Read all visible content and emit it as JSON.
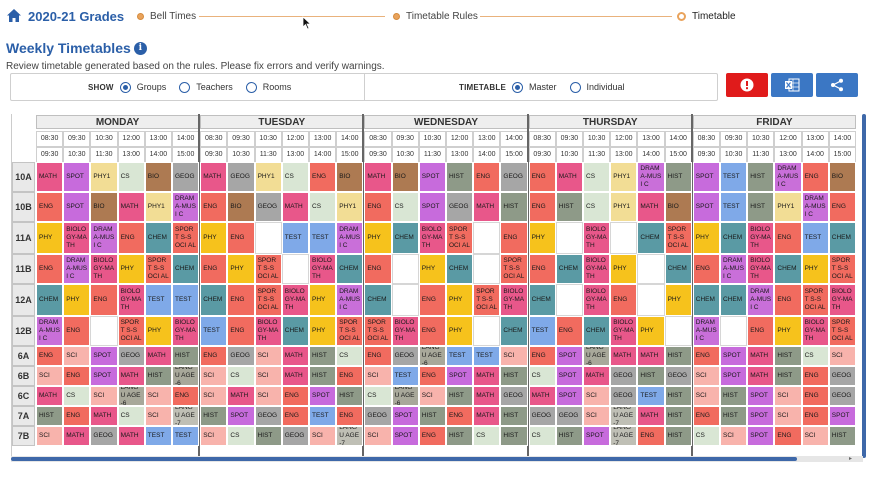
{
  "nav": {
    "title": "2020-21 Grades",
    "steps": [
      {
        "label": "Bell Times",
        "active": false
      },
      {
        "label": "Timetable Rules",
        "active": false
      },
      {
        "label": "Timetable",
        "active": true
      }
    ]
  },
  "header": {
    "title": "Weekly Timetables",
    "info_icon": "i",
    "subtitle": "Review timetable generated based on the rules. Please fix errors and verify warnings."
  },
  "filters": {
    "show_label": "SHOW",
    "show_options": [
      {
        "label": "Groups",
        "selected": true
      },
      {
        "label": "Teachers",
        "selected": false
      },
      {
        "label": "Rooms",
        "selected": false
      }
    ],
    "timetable_label": "TIMETABLE",
    "timetable_options": [
      {
        "label": "Master",
        "selected": true
      },
      {
        "label": "Individual",
        "selected": false
      }
    ]
  },
  "toolbar": {
    "error_icon": "alert-circle-icon",
    "excel_icon": "excel-icon",
    "share_icon": "share-icon",
    "error_color": "#e01b1b",
    "accent_color": "#3b77c4"
  },
  "timetable": {
    "days": [
      "MONDAY",
      "TUESDAY",
      "WEDNESDAY",
      "THURSDAY",
      "FRIDAY"
    ],
    "periods": [
      {
        "start": "08:30",
        "end": "09:30"
      },
      {
        "start": "09:30",
        "end": "10:30"
      },
      {
        "start": "10:30",
        "end": "11:30"
      },
      {
        "start": "12:00",
        "end": "13:00"
      },
      {
        "start": "13:00",
        "end": "14:00"
      },
      {
        "start": "14:00",
        "end": "15:00"
      }
    ],
    "subject_colors": {
      "MATH": "#e8578a",
      "SPOT": "#c76bdc",
      "PHY1": "#f2dd95",
      "CS": "#d9e6d4",
      "BIO": "#ad7a52",
      "GEOG": "#a6a6a6",
      "ENG": "#f16b5f",
      "DRAMA-MUSIC": "#c96fd9",
      "HIST": "#8e9a88",
      "TEST": "#7fa9e8",
      "SPORTS-SOCIAL": "#f16b5f",
      "PHY": "#f6c21c",
      "BIOLOGY-MATH": "#e8578a",
      "CHEM": "#5a9aa4",
      "SCI": "#f8b3ac",
      "LANGUAGE-6": "#a8a89a",
      "LANGUAGE-7": "#bfbfb5",
      "FREE": "#ffffff"
    },
    "rows": [
      {
        "label": "10A",
        "cells": [
          "MATH",
          "SPOT",
          "PHY1",
          "CS",
          "BIO",
          "GEOG",
          "MATH",
          "GEOG",
          "PHY1",
          "CS",
          "ENG",
          "BIO",
          "MATH",
          "BIO",
          "SPOT",
          "HIST",
          "ENG",
          "GEOG",
          "ENG",
          "MATH",
          "CS",
          "PHY1",
          "DRAM A-MUSI C",
          "HIST",
          "SPOT",
          "TEST",
          "HIST",
          "DRAM A-MUSI C",
          "ENG",
          "BIO"
        ]
      },
      {
        "label": "10B",
        "cells": [
          "ENG",
          "SPOT",
          "BIO",
          "MATH",
          "PHY1",
          "DRAM A-MUSI C",
          "ENG",
          "BIO",
          "GEOG",
          "MATH",
          "CS",
          "PHY1",
          "ENG",
          "CS",
          "SPOT",
          "GEOG",
          "MATH",
          "HIST",
          "ENG",
          "HIST",
          "CS",
          "PHY1",
          "MATH",
          "BIO",
          "SPOT",
          "TEST",
          "HIST",
          "PHY1",
          "DRAM A-MUSI C",
          "ENG"
        ]
      },
      {
        "label": "11A",
        "cells": [
          "PHY",
          "BIOLO GY-MA TH",
          "DRAM A-MUSI C",
          "ENG",
          "CHEM",
          "SPORT S-SOCI AL",
          "PHY",
          "ENG",
          "FREE",
          "TEST",
          "TEST",
          "DRAM A-MUSI C",
          "PHY",
          "CHEM",
          "BIOLO GY-MA TH",
          "SPORT S-SOCI AL",
          "FREE",
          "ENG",
          "PHY",
          "FREE",
          "BIOLO GY-MA TH",
          "FREE",
          "CHEM",
          "SPORT S-SOCI AL",
          "PHY",
          "CHEM",
          "BIOLO GY-MA TH",
          "ENG",
          "TEST",
          "CHEM"
        ]
      },
      {
        "label": "11B",
        "cells": [
          "ENG",
          "DRAM A-MUSI C",
          "BIOLO GY-MA TH",
          "PHY",
          "SPORT S-SOCI AL",
          "CHEM",
          "ENG",
          "PHY",
          "SPORT S-SOCI AL",
          "FREE",
          "BIOLO GY-MA TH",
          "CHEM",
          "ENG",
          "FREE",
          "PHY",
          "CHEM",
          "FREE",
          "SPORT S-SOCI AL",
          "ENG",
          "CHEM",
          "BIOLO GY-MA TH",
          "PHY",
          "FREE",
          "CHEM",
          "ENG",
          "DRAM A-MUSI C",
          "BIOLO GY-MA TH",
          "CHEM",
          "PHY",
          "SPORT S-SOCI AL"
        ]
      },
      {
        "label": "12A",
        "cells": [
          "CHEM",
          "PHY",
          "ENG",
          "BIOLO GY-MA TH",
          "TEST",
          "TEST",
          "CHEM",
          "ENG",
          "SPORT S-SOCI AL",
          "BIOLO GY-MA TH",
          "PHY",
          "DRAM A-MUSI C",
          "CHEM",
          "FREE",
          "ENG",
          "PHY",
          "SPORT S-SOCI AL",
          "BIOLO GY-MA TH",
          "CHEM",
          "FREE",
          "BIOLO GY-MA TH",
          "ENG",
          "FREE",
          "PHY",
          "CHEM",
          "CHEM",
          "DRAM A-MUSI C",
          "ENG",
          "SPORT S-SOCI AL",
          "BIOLO GY-MA TH"
        ]
      },
      {
        "label": "12B",
        "cells": [
          "DRAM A-MUSI C",
          "ENG",
          "FREE",
          "SPORT S-SOCI AL",
          "PHY",
          "BIOLO GY-MA TH",
          "TEST",
          "ENG",
          "BIOLO GY-MA TH",
          "CHEM",
          "PHY",
          "SPORT S-SOCI AL",
          "SPORT S-SOCI AL",
          "BIOLO GY-MA TH",
          "ENG",
          "PHY",
          "FREE",
          "CHEM",
          "TEST",
          "ENG",
          "CHEM",
          "BIOLO GY-MA TH",
          "PHY",
          "FREE",
          "DRAM A-MUSI C",
          "FREE",
          "ENG",
          "PHY",
          "BIOLO GY-MA TH",
          "SPORT S-SOCI AL"
        ]
      },
      {
        "label": "6A",
        "cells": [
          "ENG",
          "SCI",
          "SPOT",
          "GEOG",
          "MATH",
          "HIST",
          "ENG",
          "GEOG",
          "SCI",
          "MATH",
          "HIST",
          "CS",
          "ENG",
          "GEOG",
          "LANGU AGE-6",
          "TEST",
          "TEST",
          "SCI",
          "ENG",
          "SPOT",
          "LANGU AGE-6",
          "MATH",
          "MATH",
          "HIST",
          "ENG",
          "SPOT",
          "MATH",
          "HIST",
          "CS",
          "SCI"
        ]
      },
      {
        "label": "6B",
        "cells": [
          "SCI",
          "ENG",
          "SPOT",
          "MATH",
          "HIST",
          "LANGU AGE-6",
          "SCI",
          "CS",
          "SCI",
          "MATH",
          "HIST",
          "ENG",
          "SCI",
          "TEST",
          "ENG",
          "SPOT",
          "MATH",
          "HIST",
          "CS",
          "SPOT",
          "MATH",
          "GEOG",
          "HIST",
          "GEOG",
          "SCI",
          "SPOT",
          "MATH",
          "HIST",
          "ENG",
          "GEOG"
        ]
      },
      {
        "label": "6C",
        "cells": [
          "MATH",
          "CS",
          "SCI",
          "LANGU AGE-6",
          "SCI",
          "ENG",
          "SCI",
          "MATH",
          "SCI",
          "ENG",
          "SPOT",
          "HIST",
          "CS",
          "LANGU AGE-6",
          "SCI",
          "HIST",
          "MATH",
          "GEOG",
          "MATH",
          "SPOT",
          "SCI",
          "GEOG",
          "TEST",
          "HIST",
          "SCI",
          "HIST",
          "SPOT",
          "SCI",
          "ENG",
          "GEOG"
        ]
      },
      {
        "label": "7A",
        "cells": [
          "HIST",
          "ENG",
          "MATH",
          "CS",
          "SCI",
          "LANGU AGE-7",
          "HIST",
          "SPOT",
          "GEOG",
          "ENG",
          "TEST",
          "ENG",
          "GEOG",
          "SPOT",
          "HIST",
          "ENG",
          "MATH",
          "HIST",
          "GEOG",
          "GEOG",
          "SCI",
          "LANGU AGE-7",
          "MATH",
          "HIST",
          "ENG",
          "HIST",
          "SPOT",
          "SCI",
          "ENG",
          "SPOT"
        ]
      },
      {
        "label": "7B",
        "cells": [
          "SCI",
          "MATH",
          "GEOG",
          "MATH",
          "TEST",
          "TEST",
          "SCI",
          "CS",
          "HIST",
          "GEOG",
          "SCI",
          "LANGU AGE-7",
          "SCI",
          "SPOT",
          "ENG",
          "HIST",
          "CS",
          "HIST",
          "CS",
          "HIST",
          "SPOT",
          "LANGU AGE-7",
          "ENG",
          "HIST",
          "CS",
          "SCI",
          "SPOT",
          "ENG",
          "SCI",
          "HIST"
        ]
      }
    ]
  }
}
